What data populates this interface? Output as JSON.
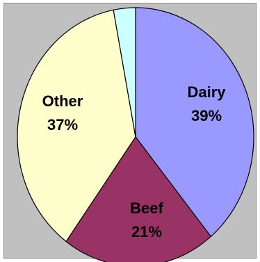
{
  "chart_data": {
    "type": "pie",
    "title": "",
    "slices": [
      {
        "label": "Dairy",
        "percent_label": "39%",
        "value": 39,
        "color": "#9999ff"
      },
      {
        "label": "Beef",
        "percent_label": "21%",
        "value": 21,
        "color": "#993366"
      },
      {
        "label": "Other",
        "percent_label": "37%",
        "value": 37,
        "color": "#ffffcc"
      },
      {
        "label": "",
        "percent_label": "",
        "value": 3,
        "color": "#ccffff"
      }
    ],
    "start_angle": "12 o'clock",
    "direction": "clockwise",
    "legend": "none",
    "background": "#c0c0c0"
  }
}
